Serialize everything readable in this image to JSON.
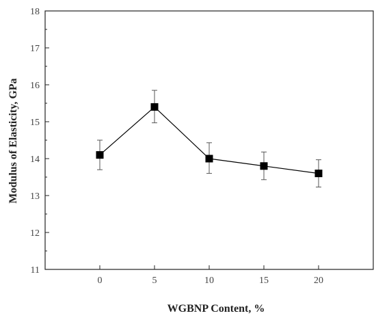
{
  "chart_data": {
    "type": "scatter",
    "xlabel": "WGBNP Content, %",
    "ylabel": "Modulus of Elasticity, GPa",
    "xlim": [
      -5,
      25
    ],
    "ylim": [
      11,
      18
    ],
    "x_ticks": [
      0,
      5,
      10,
      15,
      20
    ],
    "y_ticks": [
      11,
      12,
      13,
      14,
      15,
      16,
      17,
      18
    ],
    "grid": false,
    "legend": "none",
    "marker": "square",
    "connected": true,
    "series": [
      {
        "x": [
          0,
          5,
          10,
          15,
          20
        ],
        "y": [
          14.1,
          15.4,
          14.0,
          13.8,
          13.6
        ],
        "err_low": [
          13.7,
          14.97,
          13.6,
          13.43,
          13.23
        ],
        "err_high": [
          14.5,
          15.85,
          14.43,
          14.18,
          13.97
        ]
      }
    ],
    "colors": {
      "series": "#000000",
      "axis": "#222222",
      "tick_text": "#444444"
    }
  }
}
